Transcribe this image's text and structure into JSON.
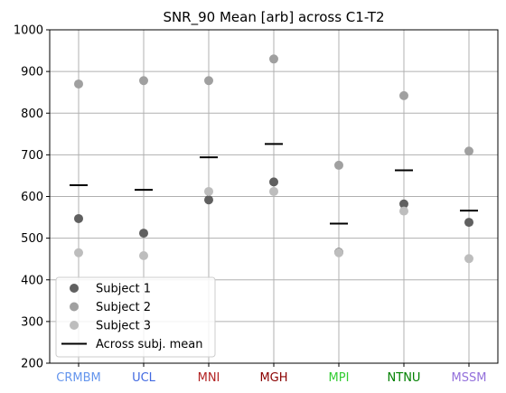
{
  "chart_data": {
    "type": "scatter",
    "title": "SNR_90 Mean [arb] across C1-T2",
    "xlabel": "",
    "ylabel": "",
    "categories": [
      "CRMBM",
      "UCL",
      "MNI",
      "MGH",
      "MPI",
      "NTNU",
      "MSSM"
    ],
    "category_colors": [
      "#6495ed",
      "#4169e1",
      "#b22222",
      "#8b0000",
      "#32cd32",
      "#008000",
      "#9370db"
    ],
    "ylim": [
      200,
      1000
    ],
    "yticks": [
      200,
      300,
      400,
      500,
      600,
      700,
      800,
      900,
      1000
    ],
    "grid": true,
    "legend_position": "lower-left",
    "series": [
      {
        "name": "Subject 1",
        "kind": "points",
        "color": "#606060",
        "values": [
          547,
          512,
          592,
          635,
          466,
          582,
          538
        ]
      },
      {
        "name": "Subject 2",
        "kind": "points",
        "color": "#a0a0a0",
        "values": [
          870,
          878,
          878,
          930,
          675,
          842,
          709
        ]
      },
      {
        "name": "Subject 3",
        "kind": "points",
        "color": "#bdbdbd",
        "values": [
          465,
          458,
          612,
          612,
          465,
          565,
          451
        ]
      },
      {
        "name": "Across subj. mean",
        "kind": "dash",
        "color": "#000000",
        "values": [
          627,
          616,
          694,
          726,
          535,
          663,
          566
        ]
      }
    ]
  }
}
